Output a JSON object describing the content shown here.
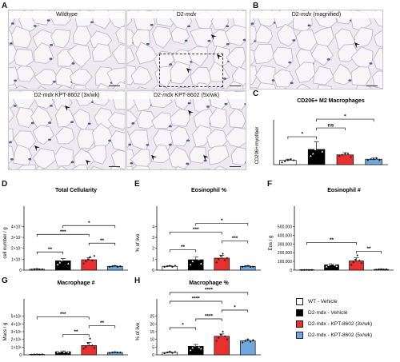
{
  "panel_letters": [
    "A",
    "B",
    "C",
    "D",
    "E",
    "F",
    "G",
    "H"
  ],
  "images": {
    "wt": {
      "label": "Wildtype",
      "italic": ""
    },
    "d2": {
      "label": "D2-",
      "italic": "mdx"
    },
    "kpt3": {
      "label": "D2-",
      "italic": "mdx",
      "suffix": " KPT-8602 (3x/wk)"
    },
    "kpt5": {
      "label": "D2-",
      "italic": "mdx",
      "suffix": " KPT-8602 (5x/wk)"
    },
    "mag": {
      "label": "D2-",
      "italic": "mdx",
      "suffix": " (magnified)"
    }
  },
  "legend": [
    {
      "label": "WT - Vehicle",
      "color": "#ffffff"
    },
    {
      "label": "D2-mdx - Vehicle",
      "color": "#000000"
    },
    {
      "label": "D2-mdx - KPT-8602 (3x/wk)",
      "color": "#e8312f"
    },
    {
      "label": "D2-mdx - KPT-8602 (5x/wk)",
      "color": "#6fa8dc"
    }
  ],
  "colors": {
    "wt": "#ffffff",
    "d2": "#000000",
    "kpt3": "#e8312f",
    "kpt5": "#6fa8dc",
    "marker": "#333333"
  },
  "chart_data": [
    {
      "panel": "C",
      "type": "bar",
      "title": "CD206+ M2 Macrophages",
      "ylabel": "CD206+/myofiber",
      "xlabel": "",
      "categories": [
        "WT - Vehicle",
        "D2-mdx - Vehicle",
        "D2-mdx - KPT-8602 (3x/wk)",
        "D2-mdx - KPT-8602 (5x/wk)"
      ],
      "values": [
        0.04,
        0.14,
        0.09,
        0.05
      ],
      "errors": [
        0.01,
        0.07,
        0.02,
        0.01
      ],
      "ylim": [
        0,
        0.5
      ],
      "points": [
        [
          0.02,
          0.03,
          0.04,
          0.05,
          0.04
        ],
        [
          0.08,
          0.1,
          0.14,
          0.2,
          0.22,
          0.12
        ],
        [
          0.08,
          0.09,
          0.1,
          0.1,
          0.07
        ],
        [
          0.04,
          0.05,
          0.05,
          0.06,
          0.04
        ]
      ],
      "significance": [
        {
          "from": 0,
          "to": 1,
          "label": "*"
        },
        {
          "from": 1,
          "to": 2,
          "label": "ns"
        },
        {
          "from": 1,
          "to": 3,
          "label": "*"
        }
      ]
    },
    {
      "panel": "D",
      "type": "bar",
      "title": "Total Cellularity",
      "ylabel": "cell number / g",
      "xlabel": "",
      "categories": [
        "WT - Vehicle",
        "D2-mdx - Vehicle",
        "D2-mdx - KPT-8602 (3x/wk)",
        "D2-mdx - KPT-8602 (5x/wk)"
      ],
      "ylim": [
        0,
        4
      ],
      "yticks": [
        "0",
        "1×10⁷",
        "2×10⁷",
        "3×10⁷",
        "4×10⁷"
      ],
      "values": [
        0.08,
        0.85,
        0.95,
        0.35
      ],
      "errors": [
        0.03,
        0.2,
        0.2,
        0.05
      ],
      "points": [
        [
          0.05,
          0.08,
          0.1,
          0.06,
          0.07
        ],
        [
          0.5,
          0.7,
          0.9,
          1.2,
          1.0,
          0.6
        ],
        [
          0.6,
          0.8,
          1.0,
          1.2,
          0.9,
          1.3
        ],
        [
          0.3,
          0.35,
          0.4,
          0.3,
          0.35
        ]
      ],
      "significance": [
        {
          "from": 0,
          "to": 1,
          "label": "**"
        },
        {
          "from": 0,
          "to": 2,
          "label": "***"
        },
        {
          "from": 2,
          "to": 3,
          "label": "**"
        },
        {
          "from": 1,
          "to": 3,
          "label": "*"
        }
      ]
    },
    {
      "panel": "E",
      "type": "bar",
      "title": "Eosinophil %",
      "ylabel": "% of live",
      "xlabel": "",
      "categories": [
        "WT - Vehicle",
        "D2-mdx - Vehicle",
        "D2-mdx - KPT-8602 (3x/wk)",
        "D2-mdx - KPT-8602 (5x/wk)"
      ],
      "ylim": [
        0,
        4
      ],
      "yticks": [
        "0",
        "1",
        "2",
        "3",
        "4"
      ],
      "values": [
        0.35,
        0.95,
        1.1,
        0.35
      ],
      "errors": [
        0.05,
        0.25,
        0.25,
        0.05
      ],
      "points": [
        [
          0.3,
          0.35,
          0.4,
          0.3,
          0.4
        ],
        [
          0.5,
          0.8,
          1.2,
          1.5,
          1.0,
          0.6
        ],
        [
          0.7,
          1.0,
          1.3,
          1.5,
          0.9,
          1.1
        ],
        [
          0.3,
          0.35,
          0.4,
          0.3,
          0.3
        ]
      ],
      "significance": [
        {
          "from": 0,
          "to": 1,
          "label": "**"
        },
        {
          "from": 0,
          "to": 2,
          "label": "***"
        },
        {
          "from": 2,
          "to": 3,
          "label": "***"
        },
        {
          "from": 1,
          "to": 3,
          "label": "*"
        }
      ]
    },
    {
      "panel": "F",
      "type": "bar",
      "title": "Eosinophil #",
      "ylabel": "Eos / g",
      "xlabel": "",
      "categories": [
        "WT - Vehicle",
        "D2-mdx - Vehicle",
        "D2-mdx - KPT-8602 (3x/wk)",
        "D2-mdx - KPT-8602 (5x/wk)"
      ],
      "ylim": [
        0,
        500000
      ],
      "yticks": [
        "0",
        "100,000",
        "200,000",
        "300,000",
        "400,000",
        "500,000"
      ],
      "values": [
        2000,
        60000,
        105000,
        8000
      ],
      "errors": [
        1000,
        15000,
        35000,
        3000
      ],
      "points": [
        [
          1000,
          2000,
          3000,
          1500,
          2500
        ],
        [
          40000,
          55000,
          70000,
          80000,
          60000,
          45000
        ],
        [
          60000,
          90000,
          120000,
          170000,
          110000,
          80000
        ],
        [
          5000,
          8000,
          10000,
          7000,
          9000
        ]
      ],
      "significance": [
        {
          "from": 0,
          "to": 2,
          "label": "**"
        },
        {
          "from": 2,
          "to": 3,
          "label": "**"
        }
      ]
    },
    {
      "panel": "G",
      "type": "bar",
      "title": "Macrophage #",
      "ylabel": "Macs / g",
      "xlabel": "",
      "categories": [
        "WT - Vehicle",
        "D2-mdx - Vehicle",
        "D2-mdx - KPT-8602 (3x/wk)",
        "D2-mdx - KPT-8602 (5x/wk)"
      ],
      "ylim": [
        0,
        5
      ],
      "yticks": [
        "0",
        "1×10⁶",
        "2×10⁶",
        "3×10⁶",
        "4×10⁶",
        "5×10⁶"
      ],
      "values": [
        0.05,
        0.4,
        1.2,
        0.3
      ],
      "errors": [
        0.02,
        0.1,
        0.4,
        0.05
      ],
      "points": [
        [
          0.03,
          0.05,
          0.06,
          0.04,
          0.05
        ],
        [
          0.3,
          0.4,
          0.5,
          0.35,
          0.45,
          0.3
        ],
        [
          0.8,
          1.0,
          1.5,
          2.1,
          1.2,
          0.9
        ],
        [
          0.25,
          0.3,
          0.35,
          0.3,
          0.3
        ]
      ],
      "significance": [
        {
          "from": 0,
          "to": 2,
          "label": "***"
        },
        {
          "from": 1,
          "to": 2,
          "label": "**"
        },
        {
          "from": 2,
          "to": 3,
          "label": "**"
        }
      ]
    },
    {
      "panel": "H",
      "type": "bar",
      "title": "Macrophage %",
      "ylabel": "% of live",
      "xlabel": "",
      "categories": [
        "WT - Vehicle",
        "D2-mdx - Vehicle",
        "D2-mdx - KPT-8602 (3x/wk)",
        "D2-mdx - KPT-8602 (5x/wk)"
      ],
      "ylim": [
        0,
        25
      ],
      "yticks": [
        "0",
        "5",
        "10",
        "15",
        "20",
        "25"
      ],
      "values": [
        1.5,
        5.5,
        12,
        9
      ],
      "errors": [
        0.4,
        1.2,
        1.5,
        0.8
      ],
      "points": [
        [
          1.0,
          1.5,
          2.0,
          1.2,
          1.8
        ],
        [
          3.0,
          4.5,
          6.0,
          7.5,
          5.0,
          4.0
        ],
        [
          9.0,
          11.0,
          13.0,
          15.0,
          12.0,
          10.0
        ],
        [
          8.0,
          9.0,
          10.0,
          8.5,
          9.5
        ]
      ],
      "significance": [
        {
          "from": 0,
          "to": 1,
          "label": "*"
        },
        {
          "from": 1,
          "to": 2,
          "label": "****"
        },
        {
          "from": 2,
          "to": 3,
          "label": "*"
        },
        {
          "from": 0,
          "to": 2,
          "label": "****"
        },
        {
          "from": 0,
          "to": 3,
          "label": "****"
        }
      ]
    }
  ]
}
